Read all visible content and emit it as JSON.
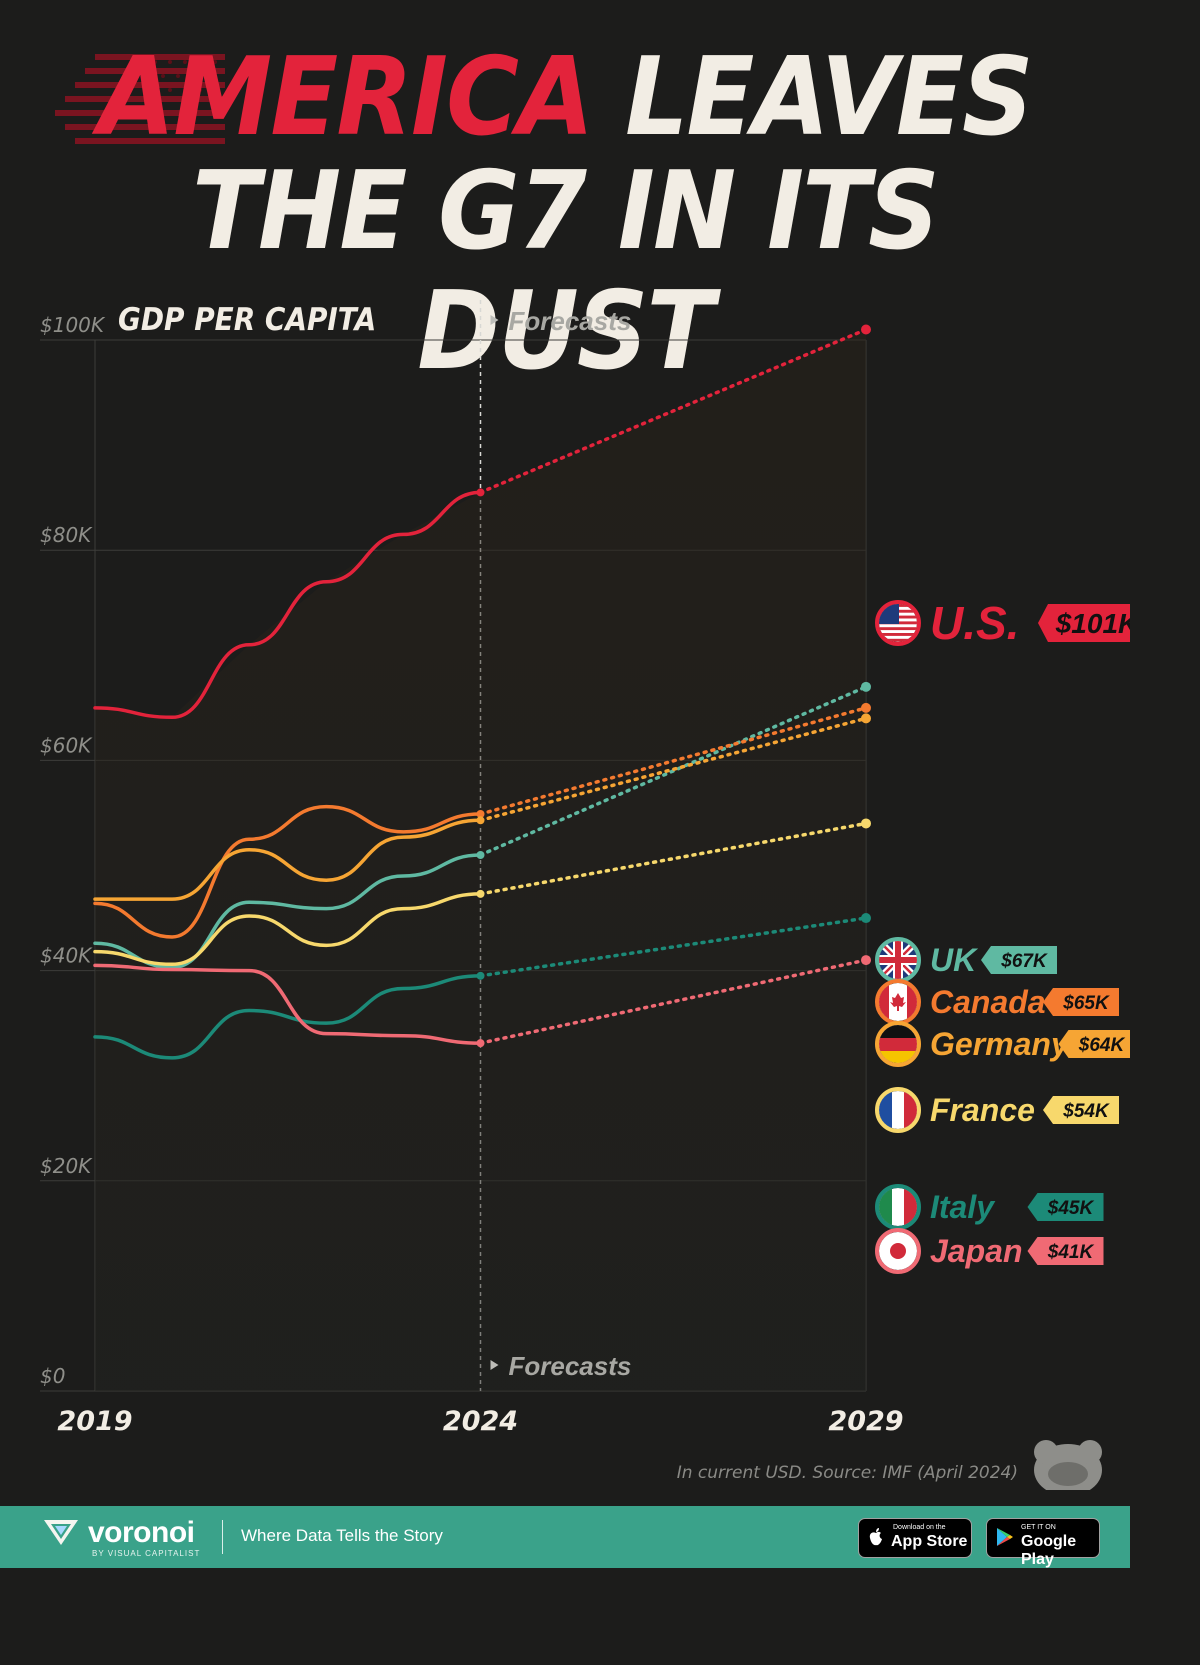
{
  "header": {
    "title_part1": "AMERICA",
    "title_part2": "LEAVES",
    "title_line2": "THE G7 IN ITS DUST"
  },
  "chart_data": {
    "type": "line",
    "title": "GDP PER CAPITA",
    "ylim": [
      0,
      100000
    ],
    "y_ticks": [
      0,
      20000,
      40000,
      60000,
      80000,
      100000
    ],
    "y_tick_labels": [
      "$0",
      "$20K",
      "$40K",
      "$60K",
      "$80K",
      "$100K"
    ],
    "x_tick_labels": [
      "2019",
      "2024",
      "2029"
    ],
    "x": [
      2019,
      2020,
      2021,
      2022,
      2023,
      2024,
      2029
    ],
    "forecast_start": 2024,
    "forecast_label": "Forecasts",
    "grid": true,
    "series": [
      {
        "name": "U.S.",
        "value_label": "$101K",
        "color": "#e3233b",
        "flag": "us-flag",
        "values": [
          65000,
          64100,
          71000,
          77000,
          81500,
          85500,
          101000
        ]
      },
      {
        "name": "UK",
        "value_label": "$67K",
        "color": "#5fb9a2",
        "flag": "uk-flag",
        "values": [
          42600,
          40300,
          46500,
          45900,
          49000,
          51000,
          67000
        ]
      },
      {
        "name": "Canada",
        "value_label": "$65K",
        "color": "#f47a2f",
        "flag": "canada-flag",
        "values": [
          46400,
          43200,
          52500,
          55600,
          53200,
          54900,
          65000
        ]
      },
      {
        "name": "Germany",
        "value_label": "$64K",
        "color": "#f6a534",
        "flag": "germany-flag",
        "values": [
          46800,
          46800,
          51500,
          48600,
          52700,
          54300,
          64000
        ]
      },
      {
        "name": "France",
        "value_label": "$54K",
        "color": "#f7d86c",
        "flag": "france-flag",
        "values": [
          41800,
          40600,
          45200,
          42400,
          45900,
          47300,
          54000
        ]
      },
      {
        "name": "Italy",
        "value_label": "$45K",
        "color": "#1c8a78",
        "flag": "italy-flag",
        "values": [
          33700,
          31700,
          36200,
          35000,
          38300,
          39500,
          45000
        ]
      },
      {
        "name": "Japan",
        "value_label": "$41K",
        "color": "#f06a74",
        "flag": "japan-flag",
        "values": [
          40500,
          40100,
          40000,
          34000,
          33800,
          33100,
          41000
        ]
      }
    ]
  },
  "note": {
    "source": "In current USD. Source: IMF (April 2024)"
  },
  "footer": {
    "brand": "voronoi",
    "brand_sub": "BY VISUAL CAPITALIST",
    "tagline": "Where Data Tells the Story",
    "app_store_small": "Download on the",
    "app_store_big": "App Store",
    "google_play_small": "GET IT ON",
    "google_play_big": "Google Play"
  }
}
